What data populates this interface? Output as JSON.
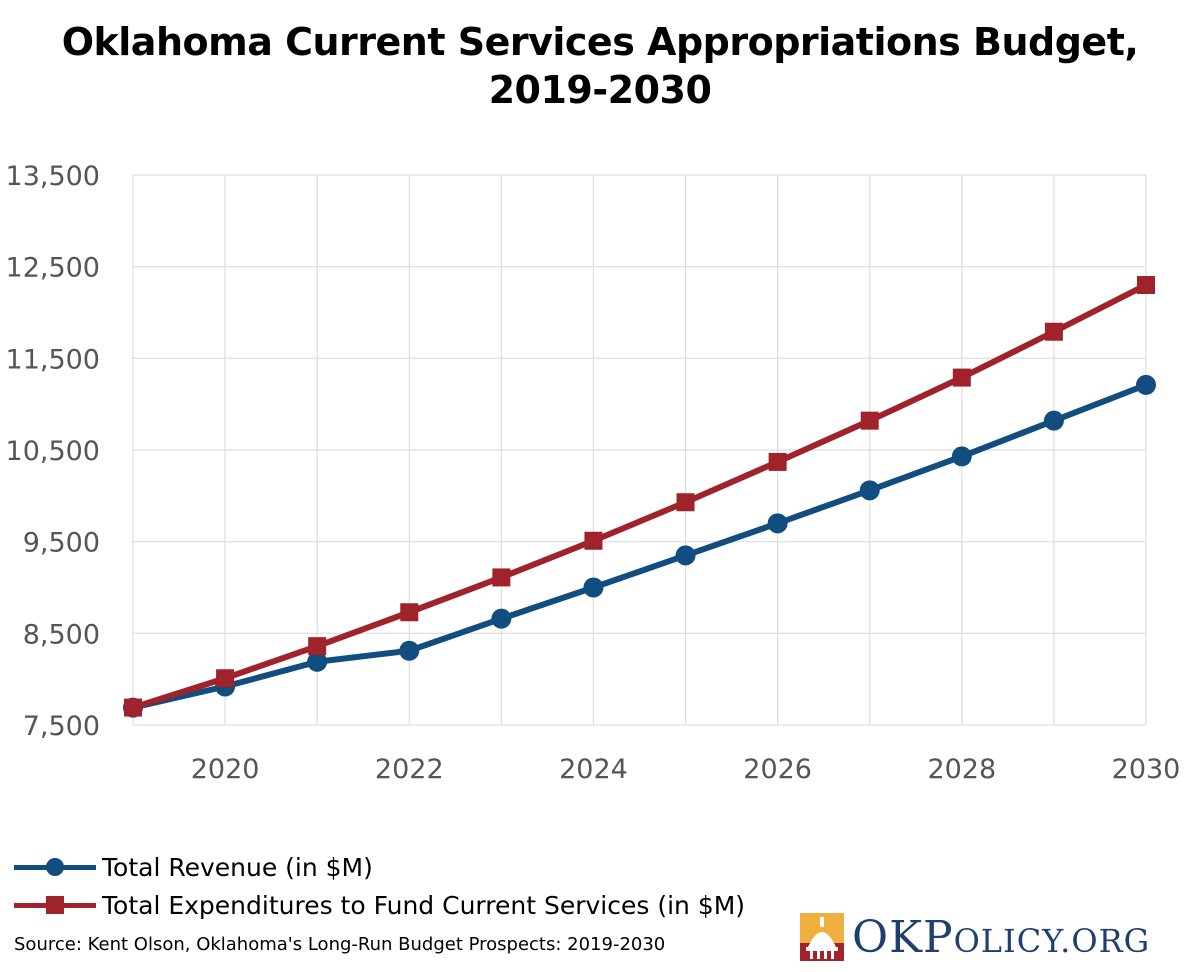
{
  "chart_data": {
    "type": "line",
    "title_lines": [
      "Oklahoma Current Services Appropriations Budget,",
      "2019-2030"
    ],
    "x": [
      2019,
      2020,
      2021,
      2022,
      2023,
      2024,
      2025,
      2026,
      2027,
      2028,
      2029,
      2030
    ],
    "x_tick_labels": [
      "2020",
      "2022",
      "2024",
      "2026",
      "2028",
      "2030"
    ],
    "x_ticks": [
      2020,
      2022,
      2024,
      2026,
      2028,
      2030
    ],
    "xlim": [
      2019,
      2030
    ],
    "ylim": [
      7500,
      13500
    ],
    "y_ticks": [
      7500,
      8500,
      9500,
      10500,
      11500,
      12500,
      13500
    ],
    "y_tick_labels": [
      "7,500",
      "8,500",
      "9,500",
      "10,500",
      "11,500",
      "12,500",
      "13,500"
    ],
    "grid": true,
    "legend_position": "bottom-left",
    "series": [
      {
        "name": "Total Revenue (in $M)",
        "color": "#114d7e",
        "marker": "circle",
        "values": [
          7690,
          7920,
          8190,
          8310,
          8660,
          9000,
          9350,
          9700,
          10060,
          10430,
          10820,
          11210
        ]
      },
      {
        "name": "Total Expenditures to Fund Current Services (in $M)",
        "color": "#a0222a",
        "marker": "square",
        "values": [
          7690,
          8010,
          8360,
          8730,
          9110,
          9510,
          9930,
          10370,
          10820,
          11290,
          11790,
          12300
        ]
      }
    ]
  },
  "source": "Source: Kent Olson, Oklahoma's Long-Run Budget Prospects: 2019-2030",
  "logo": {
    "text_big_1": "OK",
    "text_big_2": "P",
    "text_small_1": "OLICY",
    "text_small_2": ".ORG",
    "colors": {
      "navy": "#1f3f6e",
      "gold": "#f0b040",
      "red": "#a0222a"
    }
  }
}
